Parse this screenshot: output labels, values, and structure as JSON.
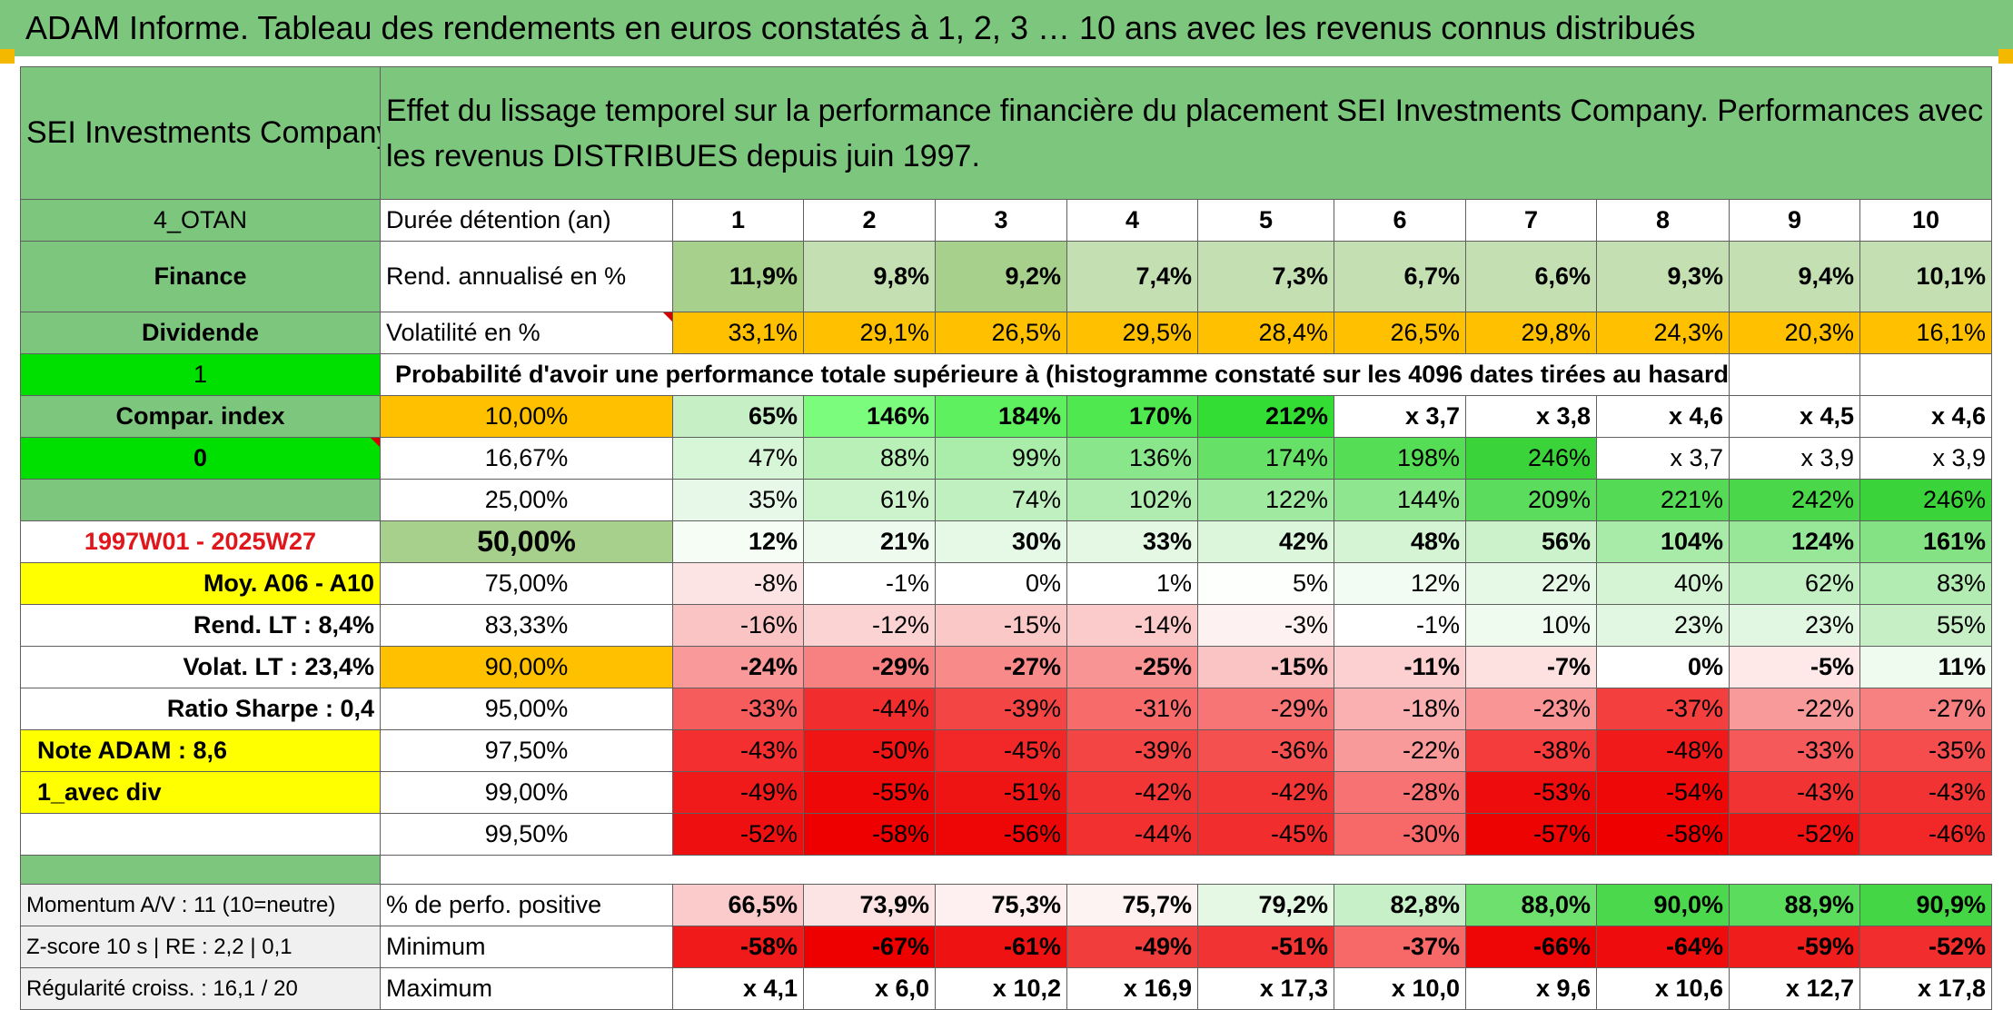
{
  "title": "ADAM Informe. Tableau des rendements en euros constatés à 1, 2, 3 … 10 ans avec les revenus connus distribués",
  "header": {
    "company": "SEI Investments Company",
    "description": "Effet du lissage temporel sur la performance financière du placement SEI Investments Company. Performances avec les revenus DISTRIBUES depuis juin 1997."
  },
  "side": {
    "code": "4_OTAN",
    "sector": "Finance",
    "type": "Dividende",
    "flag1": "1",
    "compar": "Compar. index",
    "flag0": "0",
    "blank": "",
    "period": "1997W01 - 2025W27",
    "moy": "Moy. A06 - A10",
    "rend_lt": "Rend. LT :   8,4%",
    "volat_lt": "Volat. LT :   23,4%",
    "sharpe": "Ratio Sharpe :   0,4",
    "note": "Note ADAM : 8,6",
    "avec_div": "1_avec div",
    "momentum": "Momentum A/V : 11 (10=neutre)",
    "zscore": "Z-score 10 s | RE : 2,2 | 0,1",
    "regularite": "Régularité croiss. : 16,1 / 20"
  },
  "labels": {
    "duree": "Durée détention (an)",
    "rend": "Rend. annualisé en %",
    "volat": "Volatilité en %",
    "proba": "Probabilité d'avoir une performance totale supérieure à (histogramme constaté sur les 4096 dates tirées au hasard)",
    "positive": "% de perfo. positive",
    "minimum": "Minimum",
    "maximum": "Maximum"
  },
  "years": [
    "1",
    "2",
    "3",
    "4",
    "5",
    "6",
    "7",
    "8",
    "9",
    "10"
  ],
  "rend": [
    "11,9%",
    "9,8%",
    "9,2%",
    "7,4%",
    "7,3%",
    "6,7%",
    "6,6%",
    "9,3%",
    "9,4%",
    "10,1%"
  ],
  "volat": [
    "33,1%",
    "29,1%",
    "26,5%",
    "29,5%",
    "28,4%",
    "26,5%",
    "29,8%",
    "24,3%",
    "20,3%",
    "16,1%"
  ],
  "percentiles": [
    "10,00%",
    "16,67%",
    "25,00%",
    "50,00%",
    "75,00%",
    "83,33%",
    "90,00%",
    "95,00%",
    "97,50%",
    "99,00%",
    "99,50%"
  ],
  "table": [
    [
      "65%",
      "146%",
      "184%",
      "170%",
      "212%",
      "x 3,7",
      "x 3,8",
      "x 4,6",
      "x 4,5",
      "x 4,6"
    ],
    [
      "47%",
      "88%",
      "99%",
      "136%",
      "174%",
      "198%",
      "246%",
      "x 3,7",
      "x 3,9",
      "x 3,9"
    ],
    [
      "35%",
      "61%",
      "74%",
      "102%",
      "122%",
      "144%",
      "209%",
      "221%",
      "242%",
      "246%"
    ],
    [
      "12%",
      "21%",
      "30%",
      "33%",
      "42%",
      "48%",
      "56%",
      "104%",
      "124%",
      "161%"
    ],
    [
      "-8%",
      "-1%",
      "0%",
      "1%",
      "5%",
      "12%",
      "22%",
      "40%",
      "62%",
      "83%"
    ],
    [
      "-16%",
      "-12%",
      "-15%",
      "-14%",
      "-3%",
      "-1%",
      "10%",
      "23%",
      "23%",
      "55%"
    ],
    [
      "-24%",
      "-29%",
      "-27%",
      "-25%",
      "-15%",
      "-11%",
      "-7%",
      "0%",
      "-5%",
      "11%"
    ],
    [
      "-33%",
      "-44%",
      "-39%",
      "-31%",
      "-29%",
      "-18%",
      "-23%",
      "-37%",
      "-22%",
      "-27%"
    ],
    [
      "-43%",
      "-50%",
      "-45%",
      "-39%",
      "-36%",
      "-22%",
      "-38%",
      "-48%",
      "-33%",
      "-35%"
    ],
    [
      "-49%",
      "-55%",
      "-51%",
      "-42%",
      "-42%",
      "-28%",
      "-53%",
      "-54%",
      "-43%",
      "-43%"
    ],
    [
      "-52%",
      "-58%",
      "-56%",
      "-44%",
      "-45%",
      "-30%",
      "-57%",
      "-58%",
      "-52%",
      "-46%"
    ]
  ],
  "positive": [
    "66,5%",
    "73,9%",
    "75,3%",
    "75,7%",
    "79,2%",
    "82,8%",
    "88,0%",
    "90,0%",
    "88,9%",
    "90,9%"
  ],
  "minimum": [
    "-58%",
    "-67%",
    "-61%",
    "-49%",
    "-51%",
    "-37%",
    "-66%",
    "-64%",
    "-59%",
    "-52%"
  ],
  "maximum": [
    "x 4,1",
    "x 6,0",
    "x 10,2",
    "x 16,9",
    "x 17,3",
    "x 10,0",
    "x 9,6",
    "x 10,6",
    "x 12,7",
    "x 17,8"
  ],
  "colors": {
    "header_green": "#7dc67d",
    "bright_green": "#00e000",
    "yellow": "#ffff00",
    "orange": "#ffc000",
    "light_green": "#c4e0b2",
    "red": "#ff0000",
    "pink": "#fde4e4"
  },
  "table_colors": [
    [
      "#c6efc6",
      "#7cfc7c",
      "#5ef05e",
      "#4fe84f",
      "#33dd33",
      "#ffffff",
      "#ffffff",
      "#ffffff",
      "#ffffff",
      "#ffffff"
    ],
    [
      "#d7f5d7",
      "#b8f0b8",
      "#aaedaa",
      "#8ae68a",
      "#66e066",
      "#55dd55",
      "#3ad43a",
      "#ffffff",
      "#ffffff",
      "#ffffff"
    ],
    [
      "#e8f8e8",
      "#cdf3cd",
      "#c0f0c0",
      "#b0ecb0",
      "#a0e9a0",
      "#8ee68e",
      "#5cdc5c",
      "#55da55",
      "#4ad84a",
      "#3ad43a"
    ],
    [
      "#f5fdf5",
      "#edfaed",
      "#e6f8e6",
      "#e4f8e4",
      "#dbf6db",
      "#d4f4d4",
      "#cbf2cb",
      "#a8eaa8",
      "#98e698",
      "#84e284"
    ],
    [
      "#fde4e4",
      "#ffffff",
      "#ffffff",
      "#ffffff",
      "#fcfffc",
      "#f2fcf2",
      "#e6f8e6",
      "#d4f4d4",
      "#c2f0c2",
      "#b2ecb2"
    ],
    [
      "#fbc4c4",
      "#fcd3d3",
      "#fbc8c8",
      "#fbcbcb",
      "#fef1f1",
      "#ffffff",
      "#eefbee",
      "#e2f7e2",
      "#e2f7e2",
      "#c6efc6"
    ],
    [
      "#f99999",
      "#f78080",
      "#f88a8a",
      "#f99494",
      "#fbc4c4",
      "#fcd0d0",
      "#fde0e0",
      "#ffffff",
      "#fee8e8",
      "#eefbee"
    ],
    [
      "#f65c5c",
      "#f22d2d",
      "#f44545",
      "#f76b6b",
      "#f77575",
      "#fab0b0",
      "#f99595",
      "#f43f3f",
      "#f99a9a",
      "#f78080"
    ],
    [
      "#f32f2f",
      "#f01515",
      "#f22828",
      "#f44545",
      "#f55050",
      "#f99a9a",
      "#f43c3c",
      "#f01a1a",
      "#f55959",
      "#f54d4d"
    ],
    [
      "#f01a1a",
      "#ee0808",
      "#ef1414",
      "#f23636",
      "#f23636",
      "#f77373",
      "#ee0c0c",
      "#ee0808",
      "#f23333",
      "#f23333"
    ],
    [
      "#ee1010",
      "#ee0000",
      "#ee0606",
      "#f23030",
      "#f22d2d",
      "#f76969",
      "#ee0303",
      "#ee0000",
      "#ef1212",
      "#f22828"
    ]
  ],
  "positive_colors": [
    "#fbcaca",
    "#fde4e4",
    "#fef0f0",
    "#fef3f3",
    "#e4f8e4",
    "#c8f0c8",
    "#6ee06e",
    "#4cd84c",
    "#5cdc5c",
    "#44d644"
  ],
  "minimum_colors": [
    "#f01a1a",
    "#ee0000",
    "#ef1212",
    "#f23d3d",
    "#f23333",
    "#f76969",
    "#ee0606",
    "#ef0c0c",
    "#f01d1d",
    "#f22d2d"
  ]
}
